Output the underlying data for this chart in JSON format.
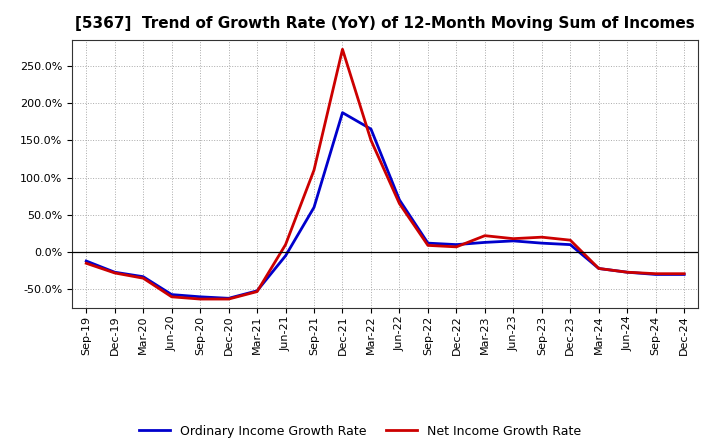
{
  "title": "[5367]  Trend of Growth Rate (YoY) of 12-Month Moving Sum of Incomes",
  "x_labels": [
    "Sep-19",
    "Dec-19",
    "Mar-20",
    "Jun-20",
    "Sep-20",
    "Dec-20",
    "Mar-21",
    "Jun-21",
    "Sep-21",
    "Dec-21",
    "Mar-22",
    "Jun-22",
    "Sep-22",
    "Dec-22",
    "Mar-23",
    "Jun-23",
    "Sep-23",
    "Dec-23",
    "Mar-24",
    "Jun-24",
    "Sep-24",
    "Dec-24"
  ],
  "ordinary_income": [
    -0.12,
    -0.27,
    -0.33,
    -0.57,
    -0.6,
    -0.62,
    -0.52,
    -0.05,
    0.6,
    1.87,
    1.65,
    0.7,
    0.12,
    0.1,
    0.13,
    0.15,
    0.12,
    0.1,
    -0.22,
    -0.27,
    -0.3,
    -0.3
  ],
  "net_income": [
    -0.15,
    -0.28,
    -0.35,
    -0.6,
    -0.63,
    -0.63,
    -0.53,
    0.1,
    1.1,
    2.72,
    1.5,
    0.65,
    0.09,
    0.07,
    0.22,
    0.18,
    0.2,
    0.16,
    -0.22,
    -0.27,
    -0.29,
    -0.29
  ],
  "ordinary_color": "#0000cc",
  "net_color": "#cc0000",
  "ylim": [
    -0.75,
    2.85
  ],
  "yticks": [
    -0.5,
    0.0,
    0.5,
    1.0,
    1.5,
    2.0,
    2.5
  ],
  "bg_color": "#ffffff",
  "grid_color": "#aaaaaa",
  "legend_ordinary": "Ordinary Income Growth Rate",
  "legend_net": "Net Income Growth Rate",
  "line_width": 2.0,
  "title_fontsize": 11,
  "tick_fontsize": 8,
  "legend_fontsize": 9
}
